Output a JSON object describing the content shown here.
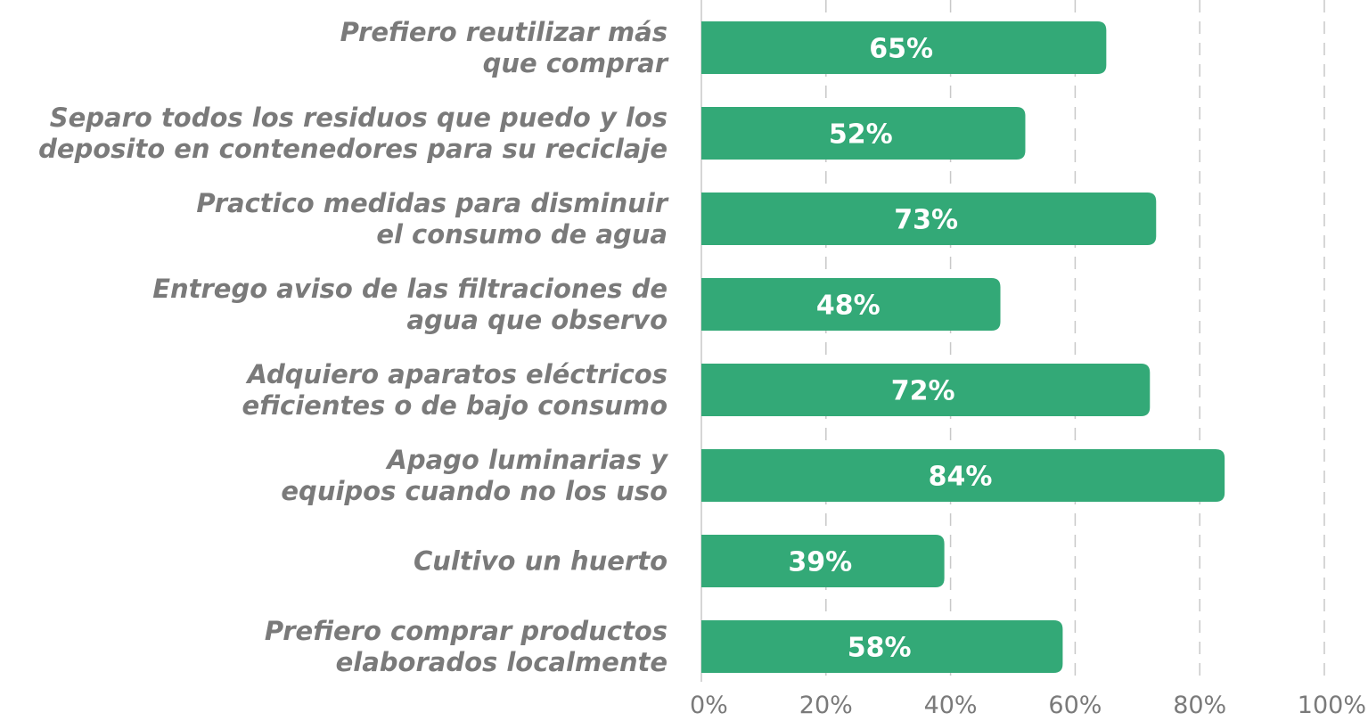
{
  "chart_data": {
    "type": "bar",
    "orientation": "horizontal",
    "categories": [
      [
        "Prefiero reutilizar más",
        "que comprar"
      ],
      [
        "Separo todos los residuos que puedo y los",
        "deposito en contenedores para su reciclaje"
      ],
      [
        "Practico medidas para disminuir",
        "el consumo de agua"
      ],
      [
        "Entrego aviso de las filtraciones de",
        "agua que observo"
      ],
      [
        "Adquiero aparatos eléctricos",
        "eficientes o de bajo consumo"
      ],
      [
        "Apago luminarias y",
        "equipos cuando no los uso"
      ],
      [
        "Cultivo un huerto"
      ],
      [
        "Prefiero comprar productos",
        "elaborados localmente"
      ]
    ],
    "values": [
      65,
      52,
      73,
      48,
      72,
      84,
      39,
      58
    ],
    "value_labels": [
      "65%",
      "52%",
      "73%",
      "48%",
      "72%",
      "84%",
      "39%",
      "58%"
    ],
    "x_ticks": [
      "0%",
      "20%",
      "40%",
      "60%",
      "80%",
      "100%"
    ],
    "xlim": [
      0,
      100
    ],
    "grid": true,
    "bar_color": "#33a977",
    "label_color": "#7a7a7a",
    "grid_color": "#c8c8c8"
  }
}
